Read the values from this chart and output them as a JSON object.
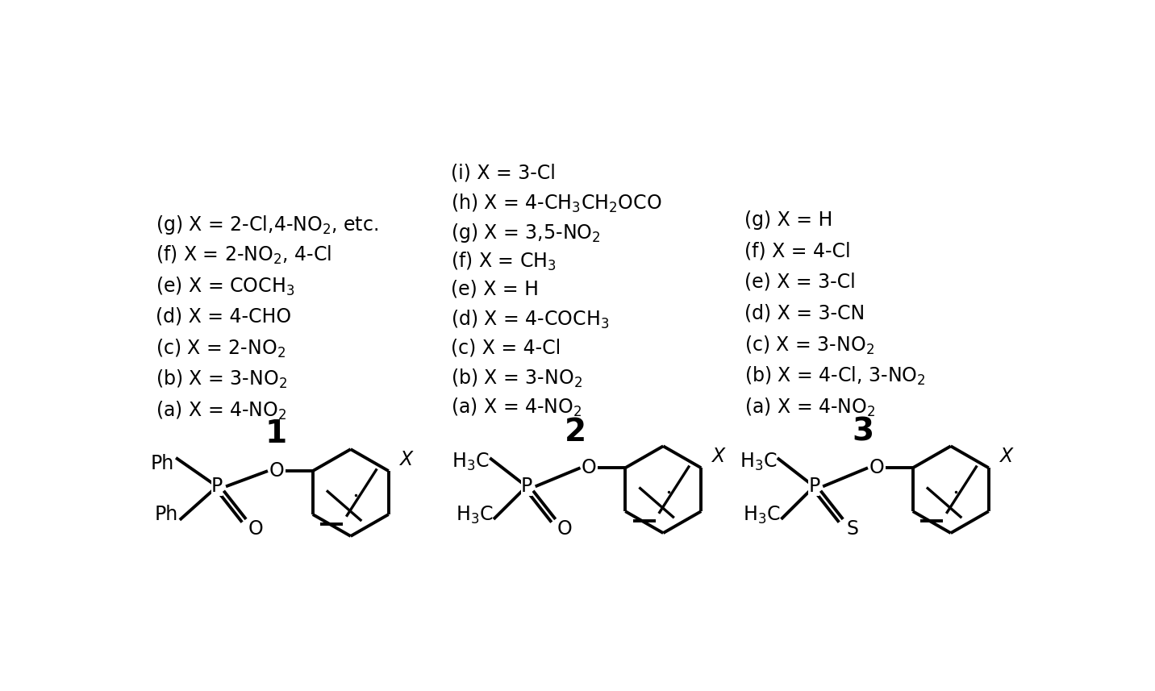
{
  "bg_color": "#ffffff",
  "compound1_label": "1",
  "compound2_label": "2",
  "compound3_label": "3",
  "compound1_items": [
    "(a) X = 4-NO$_2$",
    "(b) X = 3-NO$_2$",
    "(c) X = 2-NO$_2$",
    "(d) X = 4-CHO",
    "(e) X = COCH$_3$",
    "(f) X = 2-NO$_2$, 4-Cl",
    "(g) X = 2-Cl,4-NO$_2$, etc."
  ],
  "compound2_items": [
    "(a) X = 4-NO$_2$",
    "(b) X = 3-NO$_2$",
    "(c) X = 4-Cl",
    "(d) X = 4-COCH$_3$",
    "(e) X = H",
    "(f) X = CH$_3$",
    "(g) X = 3,5-NO$_2$",
    "(h) X = 4-CH$_3$CH$_2$OCO",
    "(i) X = 3-Cl"
  ],
  "compound3_items": [
    "(a) X = 4-NO$_2$",
    "(b) X = 4-Cl, 3-NO$_2$",
    "(c) X = 3-NO$_2$",
    "(d) X = 3-CN",
    "(e) X = 3-Cl",
    "(f) X = 4-Cl",
    "(g) X = H"
  ]
}
